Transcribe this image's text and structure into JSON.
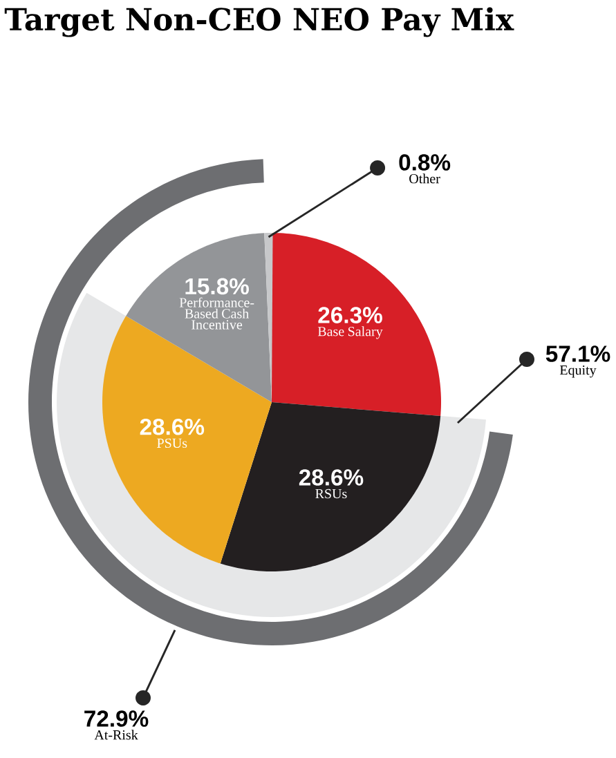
{
  "chart_data": {
    "type": "pie",
    "title": "Target Non-CEO NEO Pay Mix",
    "categories": [
      "Base Salary",
      "RSUs",
      "PSUs",
      "Performance-Based Cash Incentive",
      "Other"
    ],
    "values": [
      26.3,
      28.6,
      28.6,
      15.8,
      0.8
    ],
    "colors": [
      "#d71f27",
      "#231f20",
      "#eda921",
      "#939598",
      "#c7c8ca"
    ],
    "value_labels": [
      "26.3%",
      "28.6%",
      "28.6%",
      "15.8%",
      "0.8%"
    ],
    "annotations": [
      "57.1%",
      "Equity",
      "72.9%",
      "At-Risk"
    ]
  }
}
